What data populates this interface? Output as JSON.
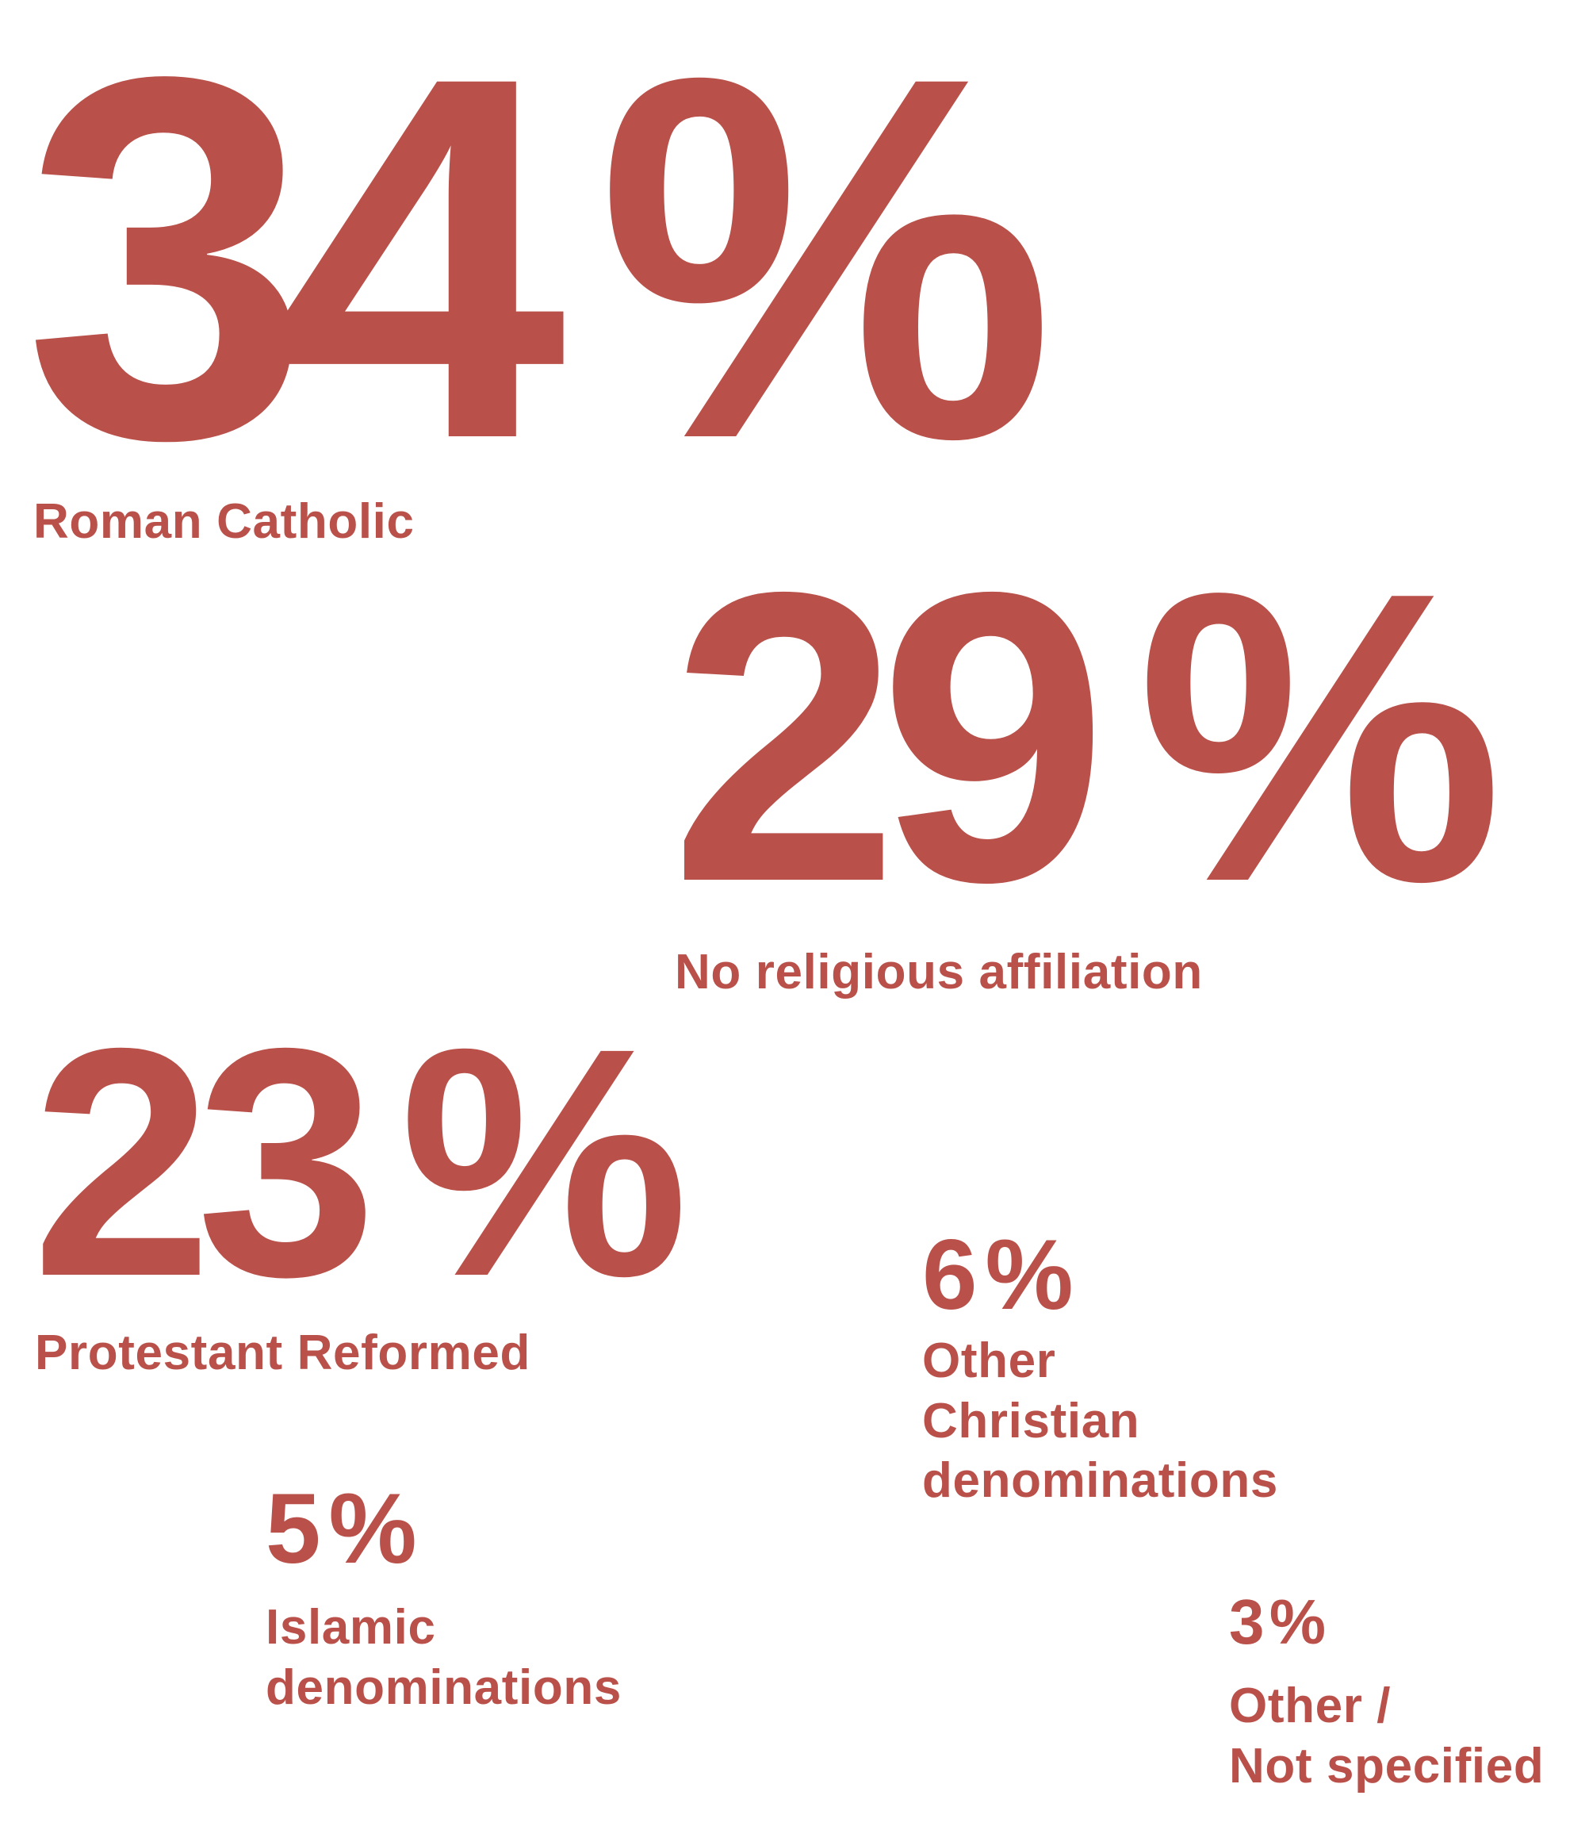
{
  "colors": {
    "accent": "#b9514a",
    "background": "#ffffff"
  },
  "stats": [
    {
      "value": 34,
      "display": "34",
      "unit": "%",
      "label_lines": [
        "Roman Catholic"
      ]
    },
    {
      "value": 29,
      "display": "29",
      "unit": "%",
      "label_lines": [
        "No religious affiliation"
      ]
    },
    {
      "value": 23,
      "display": "23",
      "unit": "%",
      "label_lines": [
        "Protestant Reformed"
      ]
    },
    {
      "value": 6,
      "display": "6",
      "unit": "%",
      "label_lines": [
        "Other",
        "Christian",
        "denominations"
      ]
    },
    {
      "value": 5,
      "display": "5",
      "unit": "%",
      "label_lines": [
        "Islamic",
        "denominations"
      ]
    },
    {
      "value": 3,
      "display": "3",
      "unit": "%",
      "label_lines": [
        "Other /",
        "Not specified"
      ]
    }
  ]
}
